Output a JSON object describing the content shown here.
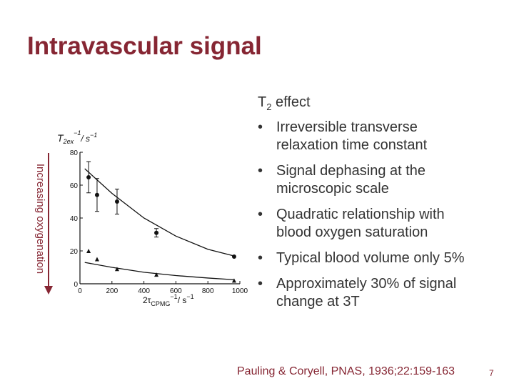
{
  "title": "Intravascular signal",
  "side_label": "Increasing oxygenation",
  "text_block": {
    "heading": [
      "T",
      "2",
      " effect"
    ],
    "bullets": [
      [
        "Irreversible transverse",
        "relaxation time constant"
      ],
      [
        "Signal dephasing at the",
        "microscopic scale"
      ],
      [
        "Quadratic relationship with",
        "blood oxygen saturation"
      ],
      [
        "Typical blood volume only 5%"
      ],
      [
        "Approximately 30% of signal",
        "change at 3T"
      ]
    ]
  },
  "citation": "Pauling & Coryell, PNAS, 1936;22:159-163",
  "page_number": "7",
  "chart_data": {
    "type": "scatter",
    "y_label_parts": [
      "T",
      "2ex",
      "−1",
      "/ s",
      "−1"
    ],
    "x_label_parts": [
      "2τ",
      "CPMG",
      "−1",
      "/ s",
      "−1"
    ],
    "xlim": [
      0,
      1000
    ],
    "ylim": [
      0,
      80
    ],
    "xticks": [
      0,
      200,
      400,
      600,
      800,
      1000
    ],
    "yticks": [
      0,
      20,
      40,
      60,
      80
    ],
    "series": [
      {
        "marker": "circle",
        "color": "#111111",
        "x": [
          54,
          107,
          232,
          478,
          964
        ],
        "values": [
          64.8,
          54,
          50,
          31,
          16.5
        ],
        "errors": [
          9.5,
          10,
          7.6,
          2.6,
          0
        ]
      },
      {
        "marker": "triangle",
        "color": "#111111",
        "x": [
          54,
          107,
          232,
          478,
          964
        ],
        "values": [
          20,
          15,
          9,
          5.6,
          2
        ]
      },
      {
        "marker": "line",
        "color": "#111111",
        "x": [
          30,
          200,
          400,
          600,
          800,
          960
        ],
        "values": [
          70,
          55,
          40,
          29,
          21,
          17
        ]
      },
      {
        "marker": "line",
        "color": "#111111",
        "x": [
          30,
          200,
          400,
          600,
          800,
          960
        ],
        "values": [
          13,
          10,
          7,
          5,
          3.5,
          2.5
        ]
      }
    ]
  }
}
